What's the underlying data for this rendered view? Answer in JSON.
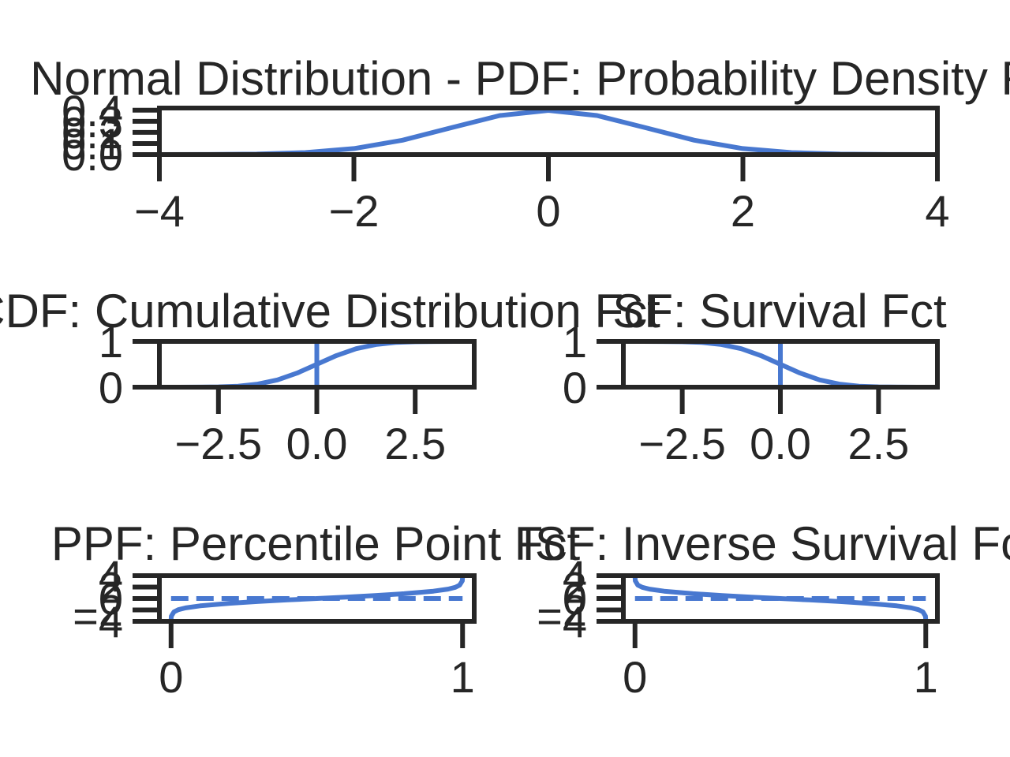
{
  "colors": {
    "line": "#4878d0",
    "axes": "#262626",
    "background": "#ffffff"
  },
  "chart_data": [
    {
      "id": "pdf",
      "type": "line",
      "title": "Normal Distribution - PDF: Probability Density Fct",
      "xlim": [
        -4,
        4
      ],
      "ylim": [
        0,
        0.42
      ],
      "xticks": [
        -4,
        -2,
        0,
        2,
        4
      ],
      "xtick_labels": [
        "−4",
        "−2",
        "0",
        "2",
        "4"
      ],
      "yticks": [
        0.0,
        0.1,
        0.2,
        0.3,
        0.4
      ],
      "ytick_labels": [
        "0.0",
        "0.1",
        "0.2",
        "0.3",
        "0.4"
      ],
      "x": [
        -4,
        -3.5,
        -3,
        -2.5,
        -2,
        -1.5,
        -1,
        -0.5,
        0,
        0.5,
        1,
        1.5,
        2,
        2.5,
        3,
        3.5,
        4
      ],
      "series": [
        {
          "values": [
            0.0001,
            0.0009,
            0.0044,
            0.0175,
            0.054,
            0.1295,
            0.242,
            0.3521,
            0.3989,
            0.3521,
            0.242,
            0.1295,
            0.054,
            0.0175,
            0.0044,
            0.0009,
            0.0001
          ]
        }
      ],
      "vlines": []
    },
    {
      "id": "cdf",
      "type": "line",
      "title": "CDF: Cumulative Distribution Fct",
      "xlim": [
        -4,
        4
      ],
      "ylim": [
        0,
        1
      ],
      "xticks": [
        -2.5,
        0.0,
        2.5
      ],
      "xtick_labels": [
        "−2.5",
        "0.0",
        "2.5"
      ],
      "yticks": [
        0,
        1
      ],
      "ytick_labels": [
        "0",
        "1"
      ],
      "x": [
        -4,
        -3.5,
        -3,
        -2.5,
        -2,
        -1.5,
        -1,
        -0.5,
        0,
        0.5,
        1,
        1.5,
        2,
        2.5,
        3,
        3.5,
        4
      ],
      "series": [
        {
          "values": [
            0.0,
            0.0002,
            0.0013,
            0.0062,
            0.0228,
            0.0668,
            0.1587,
            0.3085,
            0.5,
            0.6915,
            0.8413,
            0.9332,
            0.9772,
            0.9938,
            0.9987,
            0.9998,
            1.0
          ]
        }
      ],
      "vlines": [
        0
      ]
    },
    {
      "id": "sf",
      "type": "line",
      "title": "SF: Survival Fct",
      "xlim": [
        -4,
        4
      ],
      "ylim": [
        0,
        1
      ],
      "xticks": [
        -2.5,
        0.0,
        2.5
      ],
      "xtick_labels": [
        "−2.5",
        "0.0",
        "2.5"
      ],
      "yticks": [
        0,
        1
      ],
      "ytick_labels": [
        "0",
        "1"
      ],
      "x": [
        -4,
        -3.5,
        -3,
        -2.5,
        -2,
        -1.5,
        -1,
        -0.5,
        0,
        0.5,
        1,
        1.5,
        2,
        2.5,
        3,
        3.5,
        4
      ],
      "series": [
        {
          "values": [
            1.0,
            0.9998,
            0.9987,
            0.9938,
            0.9772,
            0.9332,
            0.8413,
            0.6915,
            0.5,
            0.3085,
            0.1587,
            0.0668,
            0.0228,
            0.0062,
            0.0013,
            0.0002,
            0.0
          ]
        }
      ],
      "vlines": [
        0
      ]
    },
    {
      "id": "ppf",
      "type": "line",
      "title": "PPF: Percentile Point Fct",
      "xlim": [
        -0.04,
        1.04
      ],
      "ylim": [
        -4,
        4
      ],
      "xticks": [
        0,
        1
      ],
      "xtick_labels": [
        "0",
        "1"
      ],
      "yticks": [
        -4,
        -2,
        0,
        2,
        4
      ],
      "ytick_labels": [
        "−4",
        "−2",
        "0",
        "2",
        "4"
      ],
      "x": [
        0.0001,
        0.001,
        0.01,
        0.025,
        0.05,
        0.1,
        0.2,
        0.3,
        0.4,
        0.5,
        0.6,
        0.7,
        0.8,
        0.9,
        0.95,
        0.975,
        0.99,
        0.999,
        0.9999
      ],
      "series": [
        {
          "values": [
            -3.719,
            -3.09,
            -2.326,
            -1.96,
            -1.645,
            -1.282,
            -0.842,
            -0.524,
            -0.253,
            0.0,
            0.253,
            0.524,
            0.842,
            1.282,
            1.645,
            1.96,
            2.326,
            3.09,
            3.719
          ]
        }
      ],
      "hlines": [
        0
      ]
    },
    {
      "id": "isf",
      "type": "line",
      "title": "ISF: Inverse Survival Fct",
      "xlim": [
        -0.04,
        1.04
      ],
      "ylim": [
        -4,
        4
      ],
      "xticks": [
        0,
        1
      ],
      "xtick_labels": [
        "0",
        "1"
      ],
      "yticks": [
        -4,
        -2,
        0,
        2,
        4
      ],
      "ytick_labels": [
        "−4",
        "−2",
        "0",
        "2",
        "4"
      ],
      "x": [
        0.0001,
        0.001,
        0.01,
        0.025,
        0.05,
        0.1,
        0.2,
        0.3,
        0.4,
        0.5,
        0.6,
        0.7,
        0.8,
        0.9,
        0.95,
        0.975,
        0.99,
        0.999,
        0.9999
      ],
      "series": [
        {
          "values": [
            3.719,
            3.09,
            2.326,
            1.96,
            1.645,
            1.282,
            0.842,
            0.524,
            0.253,
            0.0,
            -0.253,
            -0.524,
            -0.842,
            -1.282,
            -1.645,
            -1.96,
            -2.326,
            -3.09,
            -3.719
          ]
        }
      ],
      "hlines": [
        0
      ]
    }
  ]
}
